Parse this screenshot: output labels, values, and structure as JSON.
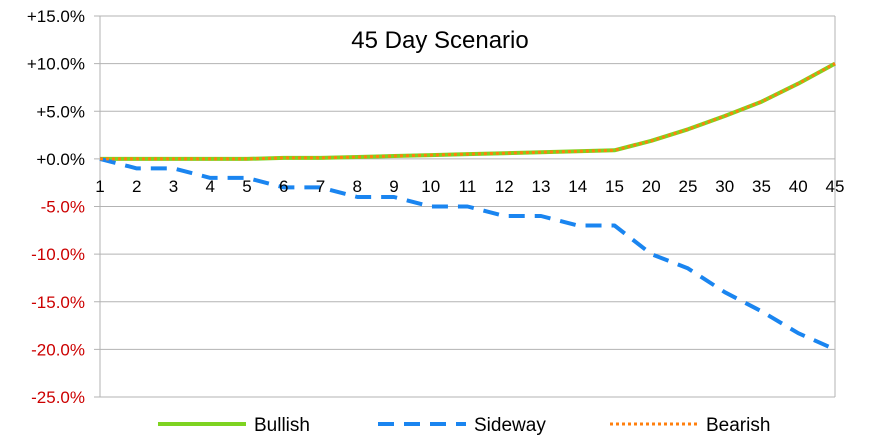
{
  "chart_data": {
    "type": "line",
    "title": "45 Day Scenario",
    "categories": [
      "1",
      "2",
      "3",
      "4",
      "5",
      "6",
      "7",
      "8",
      "9",
      "10",
      "11",
      "12",
      "13",
      "14",
      "15",
      "20",
      "25",
      "30",
      "35",
      "40",
      "45"
    ],
    "ylim": [
      -25,
      15
    ],
    "yticks": [
      {
        "value": 15,
        "label": "+15.0%"
      },
      {
        "value": 10,
        "label": "+10.0%"
      },
      {
        "value": 5,
        "label": "+5.0%"
      },
      {
        "value": 0,
        "label": "+0.0%"
      },
      {
        "value": -5,
        "label": "-5.0%"
      },
      {
        "value": -10,
        "label": "-10.0%"
      },
      {
        "value": -15,
        "label": "-15.0%"
      },
      {
        "value": -20,
        "label": "-20.0%"
      },
      {
        "value": -25,
        "label": "-25.0%"
      }
    ],
    "grid": true,
    "legend_position": "bottom",
    "series": [
      {
        "name": "Bullish",
        "color": "#7ed321",
        "style": "solid",
        "values": [
          0,
          0,
          0,
          0,
          0,
          0.1,
          0.1,
          0.2,
          0.3,
          0.4,
          0.5,
          0.6,
          0.7,
          0.8,
          0.9,
          1.9,
          3.1,
          4.5,
          6.0,
          7.9,
          10.0
        ]
      },
      {
        "name": "Sideway",
        "color": "#1a85f0",
        "style": "dashed",
        "values": [
          0,
          -1,
          -1,
          -2,
          -2,
          -3,
          -3,
          -4,
          -4,
          -5,
          -5,
          -6,
          -6,
          -7,
          -7,
          -10,
          -11.5,
          -14,
          -16,
          -18.3,
          -20
        ]
      },
      {
        "name": "Bearish",
        "color": "#ff7f0e",
        "style": "dotted",
        "values": [
          0,
          0,
          0,
          0,
          0,
          0.1,
          0.1,
          0.2,
          0.3,
          0.4,
          0.5,
          0.6,
          0.7,
          0.8,
          0.9,
          1.9,
          3.1,
          4.5,
          6.0,
          7.9,
          10.0
        ]
      }
    ],
    "colors": {
      "positive_tick": "#000000",
      "negative_tick": "#cc0000",
      "grid": "#b3b3b3",
      "axis": "#b3b3b3"
    }
  }
}
